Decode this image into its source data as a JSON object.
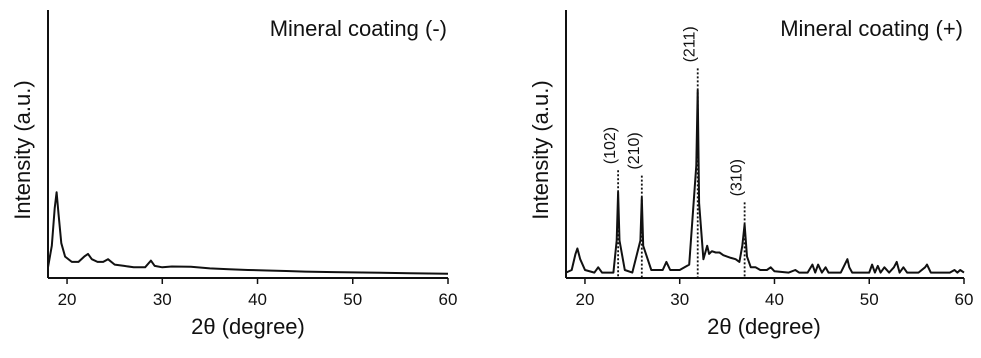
{
  "chart_data": [
    {
      "type": "line",
      "title": "Mineral coating (-)",
      "xlabel": "2θ  (degree)",
      "ylabel": "Intensity (a.u.)",
      "xlim": [
        18,
        60
      ],
      "ylim": [
        0,
        100
      ],
      "xticks": [
        20,
        30,
        40,
        50,
        60
      ],
      "yticks_shown": false,
      "grid": false,
      "series": [
        {
          "x": [
            18.0,
            18.4,
            18.7,
            18.9,
            19.1,
            19.4,
            19.8,
            20.5,
            21.2,
            21.8,
            22.2,
            22.6,
            23.2,
            23.8,
            24.3,
            25.0,
            26.0,
            27.0,
            28.2,
            28.8,
            29.2,
            30.0,
            31.0,
            33.0,
            35.0,
            37.0,
            39.0,
            41.0,
            43.0,
            45.0,
            48.0,
            52.0,
            56.0,
            60.0
          ],
          "y": [
            4,
            12,
            26,
            32,
            24,
            13,
            8,
            6,
            6,
            8,
            9,
            7,
            6,
            6,
            7,
            5,
            4.5,
            4,
            4,
            6.5,
            4.5,
            4,
            4.3,
            4.2,
            3.6,
            3.3,
            3.0,
            2.8,
            2.6,
            2.4,
            2.2,
            2.0,
            1.8,
            1.6
          ]
        }
      ],
      "annotations": []
    },
    {
      "type": "line",
      "title": "Mineral coating (+)",
      "xlabel": "2θ  (degree)",
      "ylabel": "Intensity (a.u.)",
      "xlim": [
        18,
        60
      ],
      "ylim": [
        0,
        100
      ],
      "xticks": [
        20,
        30,
        40,
        50,
        60
      ],
      "yticks_shown": false,
      "grid": false,
      "series": [
        {
          "x": [
            18.0,
            18.6,
            19.0,
            19.2,
            19.5,
            20.0,
            21.0,
            21.4,
            21.8,
            23.0,
            23.35,
            23.5,
            23.65,
            24.2,
            25.0,
            25.85,
            26.0,
            26.15,
            27.0,
            28.2,
            28.6,
            29.0,
            30.0,
            31.0,
            31.75,
            31.9,
            32.05,
            32.5,
            32.9,
            33.1,
            33.4,
            33.8,
            34.2,
            34.6,
            35.0,
            35.4,
            35.9,
            36.3,
            36.6,
            36.85,
            37.1,
            37.5,
            38.0,
            38.5,
            39.2,
            39.6,
            40.0,
            41.5,
            42.2,
            42.6,
            43.5,
            44.0,
            44.3,
            44.6,
            45.0,
            45.4,
            45.7,
            46.2,
            47.0,
            47.7,
            47.9,
            48.2,
            49.0,
            50.0,
            50.3,
            50.6,
            50.9,
            51.2,
            51.6,
            52.1,
            52.6,
            52.9,
            53.2,
            53.6,
            54.0,
            54.5,
            55.2,
            55.9,
            56.1,
            56.5,
            57.5,
            58.5,
            59.0,
            59.3,
            59.6,
            60.0
          ],
          "y": [
            2,
            3,
            9,
            11,
            7,
            3,
            2,
            4,
            2,
            2,
            14,
            32,
            14,
            3,
            2,
            14,
            30,
            12,
            3,
            3,
            6,
            3,
            3,
            5,
            42,
            70,
            28,
            7,
            12,
            9,
            10,
            9.5,
            9.5,
            8.5,
            8,
            7.5,
            7,
            6,
            12,
            20,
            8,
            4,
            4,
            3,
            3,
            4,
            2.5,
            2,
            3,
            2,
            2,
            5,
            2,
            5,
            2,
            4,
            2,
            2,
            2,
            7,
            4,
            2,
            2,
            2,
            5,
            2,
            4.5,
            2,
            4,
            2,
            4,
            6,
            2,
            4,
            2,
            2,
            2,
            4,
            5,
            2,
            2,
            2,
            3,
            2,
            3,
            2
          ]
        }
      ],
      "annotations": [
        {
          "label": "(102)",
          "x": 23.5,
          "y": 32
        },
        {
          "label": "(210)",
          "x": 26.0,
          "y": 30
        },
        {
          "label": "(211)",
          "x": 31.9,
          "y": 70
        },
        {
          "label": "(310)",
          "x": 36.85,
          "y": 20
        }
      ]
    }
  ]
}
